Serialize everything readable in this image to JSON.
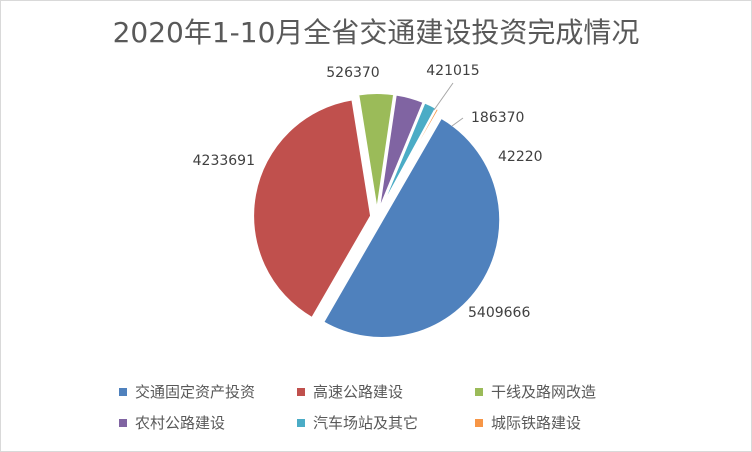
{
  "chart_data": {
    "type": "pie",
    "title": "2020年1-10月全省交通建设投资完成情况",
    "categories": [
      "交通固定资产投资",
      "高速公路建设",
      "干线及路网改造",
      "农村公路建设",
      "汽车场站及其它",
      "城际铁路建设"
    ],
    "values": [
      5409666,
      4233691,
      526370,
      421015,
      186370,
      42220
    ],
    "value_labels": [
      "5409666",
      "4233691",
      "526370",
      "421015",
      "186370",
      "42220"
    ],
    "colors": [
      "#4f81bd",
      "#c0504d",
      "#9bbb59",
      "#8064a2",
      "#4bacc6",
      "#f79646"
    ],
    "legend_position": "bottom",
    "start_angle_deg": 30
  }
}
